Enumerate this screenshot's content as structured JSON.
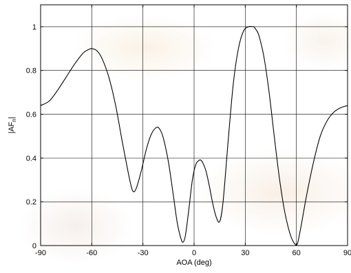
{
  "chart_data": {
    "type": "line",
    "title": "",
    "xlabel": "AOA (deg)",
    "ylabel": "|AF_n|",
    "xlim": [
      -90,
      90
    ],
    "ylim": [
      0,
      1.1
    ],
    "xticks": [
      -90,
      -60,
      -30,
      0,
      30,
      60,
      90
    ],
    "xtick_labels": [
      "-90",
      "-60",
      "-30",
      "0",
      "30",
      "60",
      "90"
    ],
    "yticks": [
      0,
      0.2,
      0.4,
      0.6,
      0.8,
      1
    ],
    "ytick_labels": [
      "0",
      "0.2",
      "0.4",
      "0.6",
      "0.8",
      "1"
    ],
    "grid": true,
    "series": [
      {
        "color": "#000000",
        "x": [
          -90,
          -85,
          -80,
          -75,
          -70,
          -65,
          -62,
          -60,
          -57,
          -54,
          -50,
          -46,
          -42,
          -38,
          -36,
          -34,
          -31,
          -28,
          -25,
          -22,
          -20,
          -18,
          -15,
          -12,
          -10,
          -8,
          -6.5,
          -5,
          -3,
          -1,
          1,
          3,
          4,
          5,
          7,
          9,
          11,
          13,
          15,
          17,
          20,
          23,
          26,
          29,
          32,
          34,
          35,
          36,
          38,
          41,
          44,
          47,
          50,
          53,
          56,
          58,
          59.5,
          60,
          61,
          63,
          66,
          70,
          74,
          78,
          82,
          86,
          88,
          90
        ],
        "y": [
          0.64,
          0.66,
          0.71,
          0.77,
          0.83,
          0.88,
          0.895,
          0.9,
          0.89,
          0.855,
          0.77,
          0.64,
          0.47,
          0.31,
          0.25,
          0.26,
          0.34,
          0.44,
          0.51,
          0.54,
          0.53,
          0.49,
          0.38,
          0.22,
          0.11,
          0.04,
          0.015,
          0.05,
          0.17,
          0.3,
          0.37,
          0.39,
          0.39,
          0.38,
          0.34,
          0.27,
          0.19,
          0.13,
          0.11,
          0.2,
          0.48,
          0.74,
          0.9,
          0.98,
          1.0,
          1.0,
          1.0,
          0.99,
          0.96,
          0.86,
          0.7,
          0.5,
          0.31,
          0.16,
          0.06,
          0.02,
          0.004,
          0.0,
          0.02,
          0.1,
          0.23,
          0.38,
          0.5,
          0.57,
          0.61,
          0.63,
          0.635,
          0.64
        ]
      }
    ]
  }
}
